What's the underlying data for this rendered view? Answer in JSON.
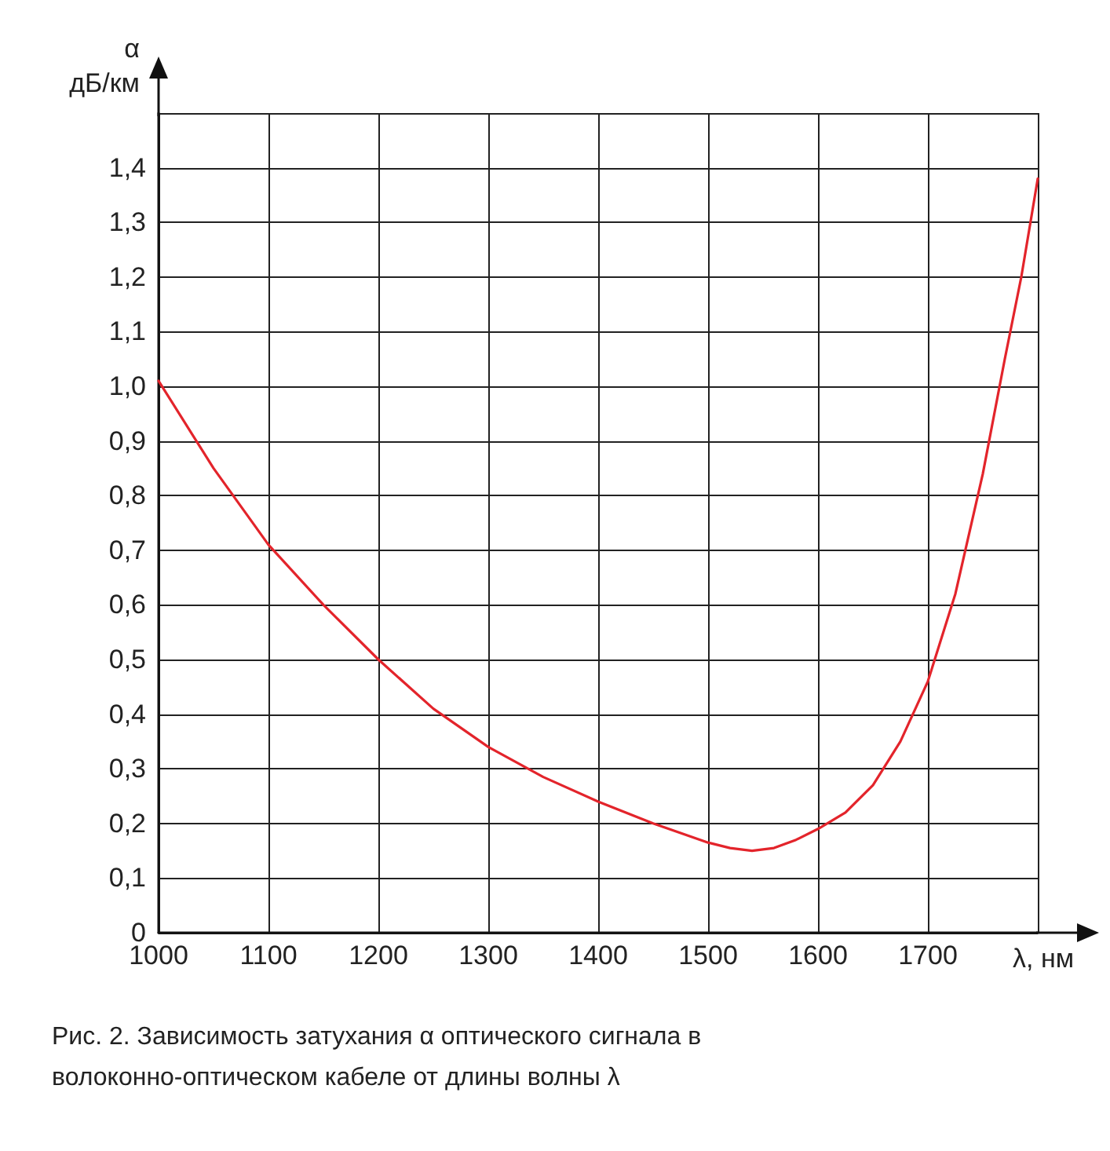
{
  "chart_data": {
    "type": "line",
    "xlabel": "λ, нм",
    "ylabel": "α\nдБ/км",
    "x": [
      1000,
      1050,
      1100,
      1150,
      1200,
      1250,
      1300,
      1350,
      1400,
      1450,
      1500,
      1520,
      1540,
      1560,
      1580,
      1600,
      1625,
      1650,
      1675,
      1700,
      1725,
      1750,
      1770,
      1785,
      1800
    ],
    "series": [
      {
        "color": "#e3242b",
        "values": [
          1.01,
          0.85,
          0.71,
          0.6,
          0.5,
          0.41,
          0.34,
          0.285,
          0.24,
          0.2,
          0.165,
          0.155,
          0.15,
          0.155,
          0.17,
          0.19,
          0.22,
          0.27,
          0.35,
          0.46,
          0.62,
          0.84,
          1.05,
          1.2,
          1.38
        ]
      }
    ],
    "xlim": [
      1000,
      1800
    ],
    "ylim": [
      0,
      1.5
    ],
    "xticks": [
      1000,
      1100,
      1200,
      1300,
      1400,
      1500,
      1600,
      1700,
      {
        "value": 1800,
        "label": null
      }
    ],
    "yticks": [
      0,
      {
        "value": 0.1,
        "label": "0,1"
      },
      {
        "value": 0.2,
        "label": "0,2"
      },
      {
        "value": 0.3,
        "label": "0,3"
      },
      {
        "value": 0.4,
        "label": "0,4"
      },
      {
        "value": 0.5,
        "label": "0,5"
      },
      {
        "value": 0.6,
        "label": "0,6"
      },
      {
        "value": 0.7,
        "label": "0,7"
      },
      {
        "value": 0.8,
        "label": "0,8"
      },
      {
        "value": 0.9,
        "label": "0,9"
      },
      {
        "value": 1.0,
        "label": "1,0"
      },
      {
        "value": 1.1,
        "label": "1,1"
      },
      {
        "value": 1.2,
        "label": "1,2"
      },
      {
        "value": 1.3,
        "label": "1,3"
      },
      {
        "value": 1.4,
        "label": "1,4"
      },
      {
        "value": 1.5,
        "label": null
      }
    ],
    "grid": true,
    "marker": "none",
    "line_style": "solid",
    "annotations": [
      "Рис. 2. Зависимость затухания α оптического сигнала в волоконно-оптическом кабеле от длины волны λ"
    ]
  }
}
